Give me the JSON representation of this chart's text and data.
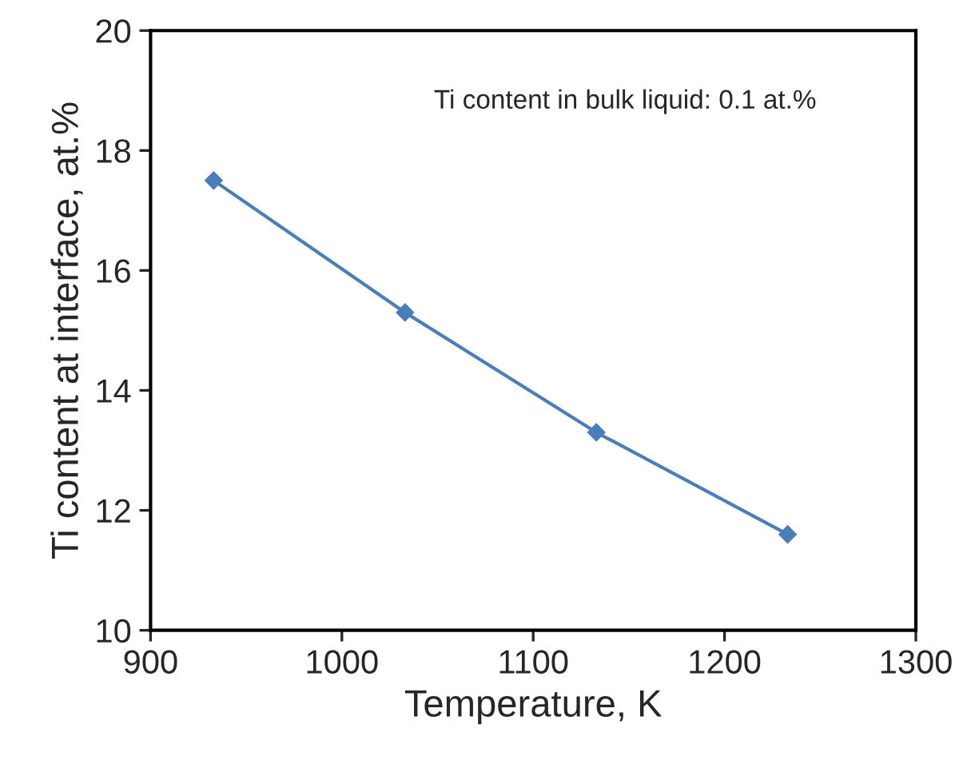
{
  "chart_data": {
    "type": "line",
    "xlabel": "Temperature, K",
    "ylabel": "Ti content at interface, at.%",
    "x": [
      933,
      1033,
      1133,
      1233
    ],
    "series": [
      {
        "color": "#4a7ebb",
        "values": [
          17.5,
          15.3,
          13.3,
          11.6
        ]
      }
    ],
    "xlim": [
      900,
      1300
    ],
    "xticks": [
      900,
      1000,
      1100,
      1200,
      1300
    ],
    "ylim": [
      10,
      20
    ],
    "yticks": [
      10,
      12,
      14,
      16,
      18,
      20
    ],
    "marker": "diamond",
    "line_style": "solid",
    "grid": false,
    "annotations": [
      "Ti content in bulk liquid: 0.1 at.%"
    ]
  }
}
